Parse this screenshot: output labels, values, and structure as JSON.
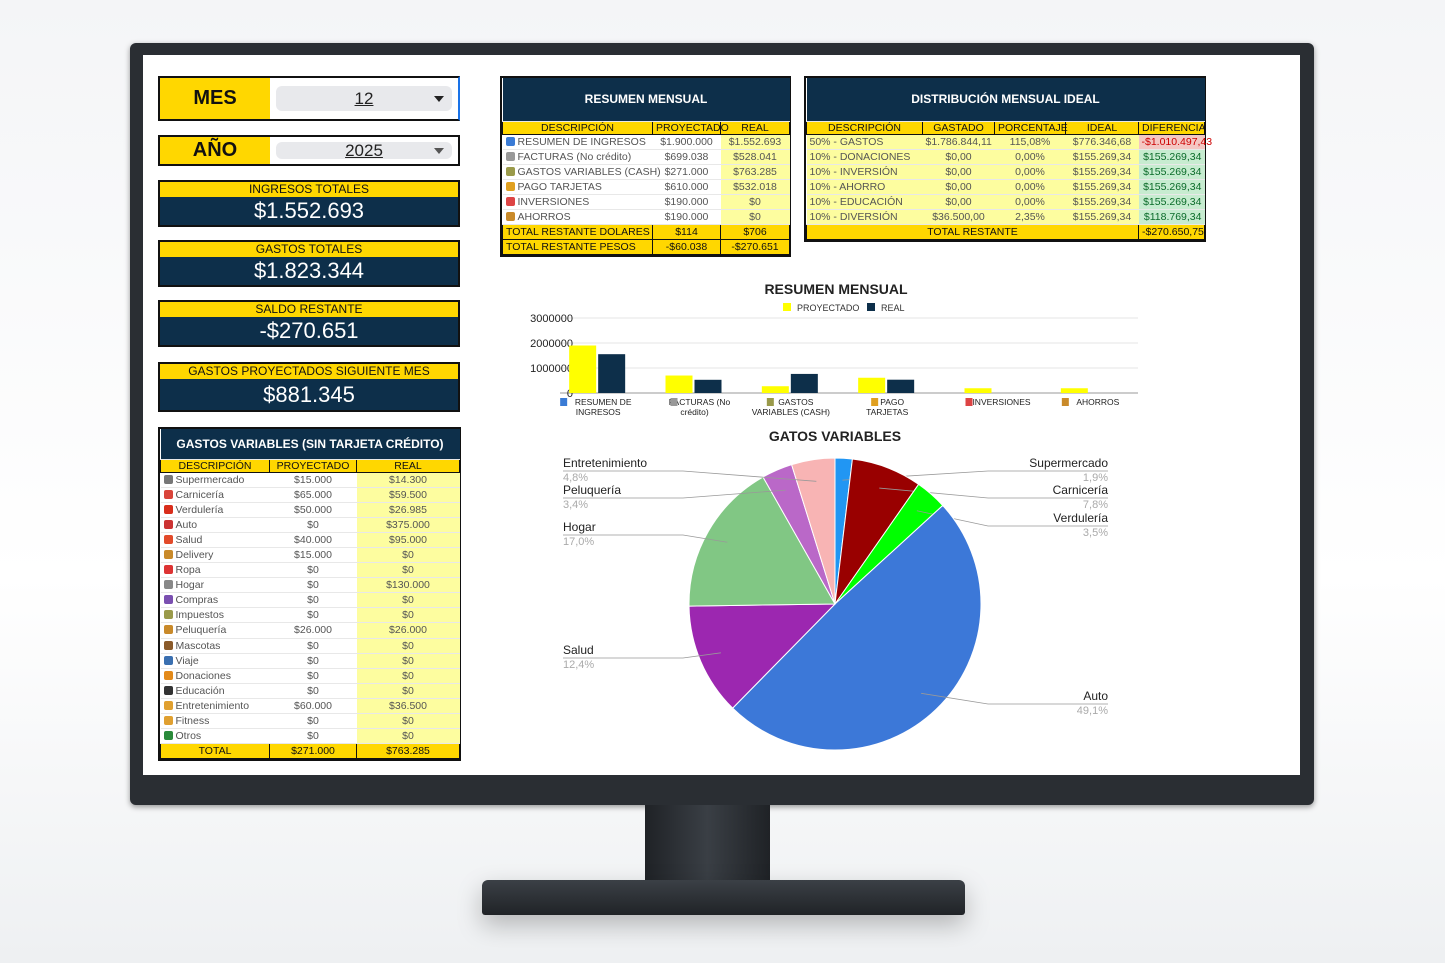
{
  "selectors": {
    "month_label": "MES",
    "month_value": "12",
    "year_label": "AÑO",
    "year_value": "2025"
  },
  "kpis": [
    {
      "label": "INGRESOS TOTALES",
      "value": "$1.552.693"
    },
    {
      "label": "GASTOS TOTALES",
      "value": "$1.823.344"
    },
    {
      "label": "SALDO RESTANTE",
      "value": "-$270.651"
    },
    {
      "label": "GASTOS PROYECTADOS SIGUIENTE MES",
      "value": "$881.345"
    }
  ],
  "variables": {
    "title": "GASTOS VARIABLES (SIN TARJETA CRÉDITO)",
    "headers": [
      "DESCRIPCIÓN",
      "PROYECTADO",
      "REAL"
    ],
    "rows": [
      [
        "Supermercado",
        "$15.000",
        "$14.300",
        "cart-icon",
        "#777"
      ],
      [
        "Carnicería",
        "$65.000",
        "$59.500",
        "meat-icon",
        "#d9443a"
      ],
      [
        "Verdulería",
        "$50.000",
        "$26.985",
        "apple-icon",
        "#d92d1b"
      ],
      [
        "Auto",
        "$0",
        "$375.000",
        "car-icon",
        "#c33"
      ],
      [
        "Salud",
        "$40.000",
        "$95.000",
        "pill-icon",
        "#e24a2a"
      ],
      [
        "Delivery",
        "$15.000",
        "$0",
        "burger-icon",
        "#c98a2a"
      ],
      [
        "Ropa",
        "$0",
        "$0",
        "shirt-icon",
        "#d33"
      ],
      [
        "Hogar",
        "$0",
        "$130.000",
        "house-icon",
        "#888"
      ],
      [
        "Compras",
        "$0",
        "$0",
        "shopping-bags-icon",
        "#7a4fb0"
      ],
      [
        "Impuestos",
        "$0",
        "$0",
        "money-icon",
        "#9a9a4a"
      ],
      [
        "Peluquería",
        "$26.000",
        "$26.000",
        "haircut-icon",
        "#c98a2a"
      ],
      [
        "Mascotas",
        "$0",
        "$0",
        "dog-icon",
        "#8a5a2a"
      ],
      [
        "Viaje",
        "$0",
        "$0",
        "airplane-icon",
        "#3a6fb0"
      ],
      [
        "Donaciones",
        "$0",
        "$0",
        "gift-icon",
        "#e38a1a"
      ],
      [
        "Educación",
        "$0",
        "$0",
        "graduation-cap-icon",
        "#333"
      ],
      [
        "Entretenimiento",
        "$60.000",
        "$36.500",
        "beer-icon",
        "#e0a030"
      ],
      [
        "Fitness",
        "$0",
        "$0",
        "muscle-icon",
        "#e0a030"
      ],
      [
        "Otros",
        "$0",
        "$0",
        "puzzle-icon",
        "#2a8a3a"
      ]
    ],
    "total": [
      "TOTAL",
      "$271.000",
      "$763.285"
    ]
  },
  "resumen": {
    "title": "RESUMEN MENSUAL",
    "headers": [
      "DESCRIPCIÓN",
      "PROYECTADO",
      "REAL"
    ],
    "rows": [
      [
        "RESUMEN DE INGRESOS",
        "$1.900.000",
        "$1.552.693",
        "bar-chart-icon",
        "#3a7bd5"
      ],
      [
        "FACTURAS (No crédito)",
        "$699.038",
        "$528.041",
        "receipt-icon",
        "#999"
      ],
      [
        "GASTOS VARIABLES (CASH)",
        "$271.000",
        "$763.285",
        "money-icon",
        "#9a9a4a"
      ],
      [
        "PAGO TARJETAS",
        "$610.000",
        "$532.018",
        "credit-card-icon",
        "#e0a020"
      ],
      [
        "INVERSIONES",
        "$190.000",
        "$0",
        "trend-chart-icon",
        "#d44"
      ],
      [
        "AHORROS",
        "$190.000",
        "$0",
        "money-bag-icon",
        "#c98a2a"
      ]
    ],
    "totals": [
      [
        "TOTAL RESTANTE DOLARES",
        "$114",
        "$706"
      ],
      [
        "TOTAL RESTANTE PESOS",
        "-$60.038",
        "-$270.651"
      ]
    ]
  },
  "distribucion": {
    "title": "DISTRIBUCIÓN MENSUAL IDEAL",
    "headers": [
      "DESCRIPCIÓN",
      "GASTADO",
      "PORCENTAJE",
      "IDEAL",
      "DIFERENCIA"
    ],
    "rows": [
      [
        "50% - GASTOS",
        "$1.786.844,11",
        "115,08%",
        "$776.346,68",
        "-$1.010.497,43"
      ],
      [
        "10% - DONACIONES",
        "$0,00",
        "0,00%",
        "$155.269,34",
        "$155.269,34"
      ],
      [
        "10% - INVERSIÓN",
        "$0,00",
        "0,00%",
        "$155.269,34",
        "$155.269,34"
      ],
      [
        "10% - AHORRO",
        "$0,00",
        "0,00%",
        "$155.269,34",
        "$155.269,34"
      ],
      [
        "10% - EDUCACIÓN",
        "$0,00",
        "0,00%",
        "$155.269,34",
        "$155.269,34"
      ],
      [
        "10% - DIVERSIÓN",
        "$36.500,00",
        "2,35%",
        "$155.269,34",
        "$118.769,34"
      ]
    ],
    "total_label": "TOTAL RESTANTE",
    "total_value": "-$270.650,75"
  },
  "chart_data": [
    {
      "type": "bar",
      "title": "RESUMEN MENSUAL",
      "categories": [
        "RESUMEN DE INGRESOS",
        "FACTURAS (No crédito)",
        "GASTOS VARIABLES (CASH)",
        "PAGO TARJETAS",
        "INVERSIONES",
        "AHORROS"
      ],
      "series": [
        {
          "name": "PROYECTADO",
          "color": "#ffff00",
          "values": [
            1900000,
            699038,
            271000,
            610000,
            190000,
            190000
          ]
        },
        {
          "name": "REAL",
          "color": "#0d2f4a",
          "values": [
            1552693,
            528041,
            763285,
            532018,
            0,
            0
          ]
        }
      ],
      "yticks": [
        "0",
        "1000000",
        "2000000",
        "3000000"
      ],
      "ylim": [
        0,
        3000000
      ],
      "grid": true,
      "legend": "top"
    },
    {
      "type": "pie",
      "title": "GATOS VARIABLES",
      "slices": [
        {
          "label": "Supermercado",
          "pct": "1,9%",
          "value": 1.9,
          "color": "#2196f3"
        },
        {
          "label": "Carnicería",
          "pct": "7,8%",
          "value": 7.8,
          "color": "#990000"
        },
        {
          "label": "Verdulería",
          "pct": "3,5%",
          "value": 3.5,
          "color": "#00ff00"
        },
        {
          "label": "Auto",
          "pct": "49,1%",
          "value": 49.1,
          "color": "#3c78d8"
        },
        {
          "label": "Salud",
          "pct": "12,4%",
          "value": 12.4,
          "color": "#9c27b0"
        },
        {
          "label": "Hogar",
          "pct": "17,0%",
          "value": 17.0,
          "color": "#81c784"
        },
        {
          "label": "Peluquería",
          "pct": "3,4%",
          "value": 3.4,
          "color": "#ba68c8"
        },
        {
          "label": "Entretenimiento",
          "pct": "4,8%",
          "value": 4.8,
          "color": "#f8b4b4"
        }
      ]
    }
  ]
}
